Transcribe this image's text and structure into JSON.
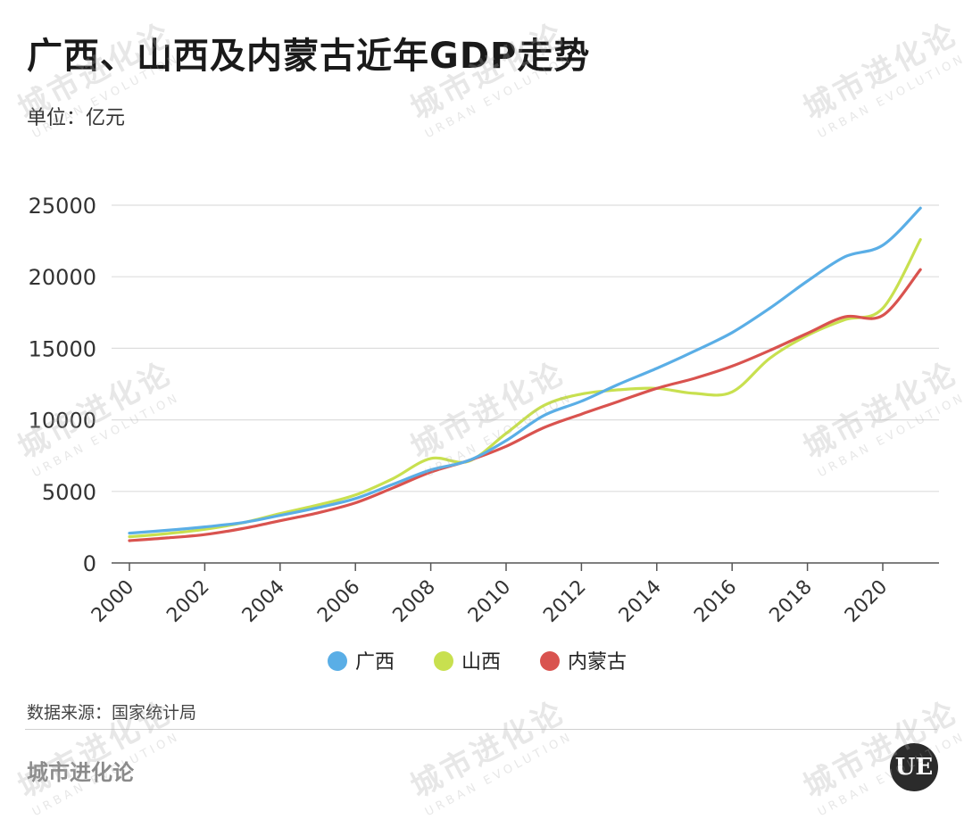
{
  "title": "广西、山西及内蒙古近年GDP走势",
  "unit": "单位：亿元",
  "source": "数据来源：国家统计局",
  "brand": "城市进化论",
  "logo_text": "UE",
  "watermark": {
    "zh": "城市进化论",
    "en": "URBAN EVOLUTION"
  },
  "chart_data": {
    "type": "line",
    "title": "广西、山西及内蒙古近年GDP走势",
    "xlabel": "",
    "ylabel": "单位：亿元",
    "x": [
      2000,
      2001,
      2002,
      2003,
      2004,
      2005,
      2006,
      2007,
      2008,
      2009,
      2010,
      2011,
      2012,
      2013,
      2014,
      2015,
      2016,
      2017,
      2018,
      2019,
      2020,
      2021
    ],
    "xticks": [
      "2000",
      "2002",
      "2004",
      "2006",
      "2008",
      "2010",
      "2012",
      "2014",
      "2016",
      "2018",
      "2020"
    ],
    "yticks": [
      "0",
      "5000",
      "10000",
      "15000",
      "20000",
      "25000"
    ],
    "ylim": [
      0,
      25000
    ],
    "grid": true,
    "legend": "bottom",
    "series": [
      {
        "name": "广西",
        "color": "#5aaee6",
        "values": [
          2080,
          2280,
          2520,
          2820,
          3320,
          3860,
          4500,
          5500,
          6500,
          7150,
          8550,
          10300,
          11300,
          12500,
          13600,
          14800,
          16100,
          17800,
          19700,
          21400,
          22200,
          24800
        ]
      },
      {
        "name": "山西",
        "color": "#c8e04f",
        "values": [
          1830,
          2050,
          2350,
          2800,
          3450,
          4050,
          4750,
          5900,
          7300,
          7100,
          9050,
          11000,
          11800,
          12100,
          12200,
          11850,
          11950,
          14300,
          15900,
          17000,
          17800,
          22600
        ]
      },
      {
        "name": "内蒙古",
        "color": "#d9534f",
        "values": [
          1560,
          1750,
          1980,
          2400,
          2950,
          3500,
          4200,
          5250,
          6350,
          7150,
          8150,
          9450,
          10400,
          11300,
          12200,
          12900,
          13750,
          14850,
          16050,
          17200,
          17300,
          20500
        ]
      }
    ]
  }
}
